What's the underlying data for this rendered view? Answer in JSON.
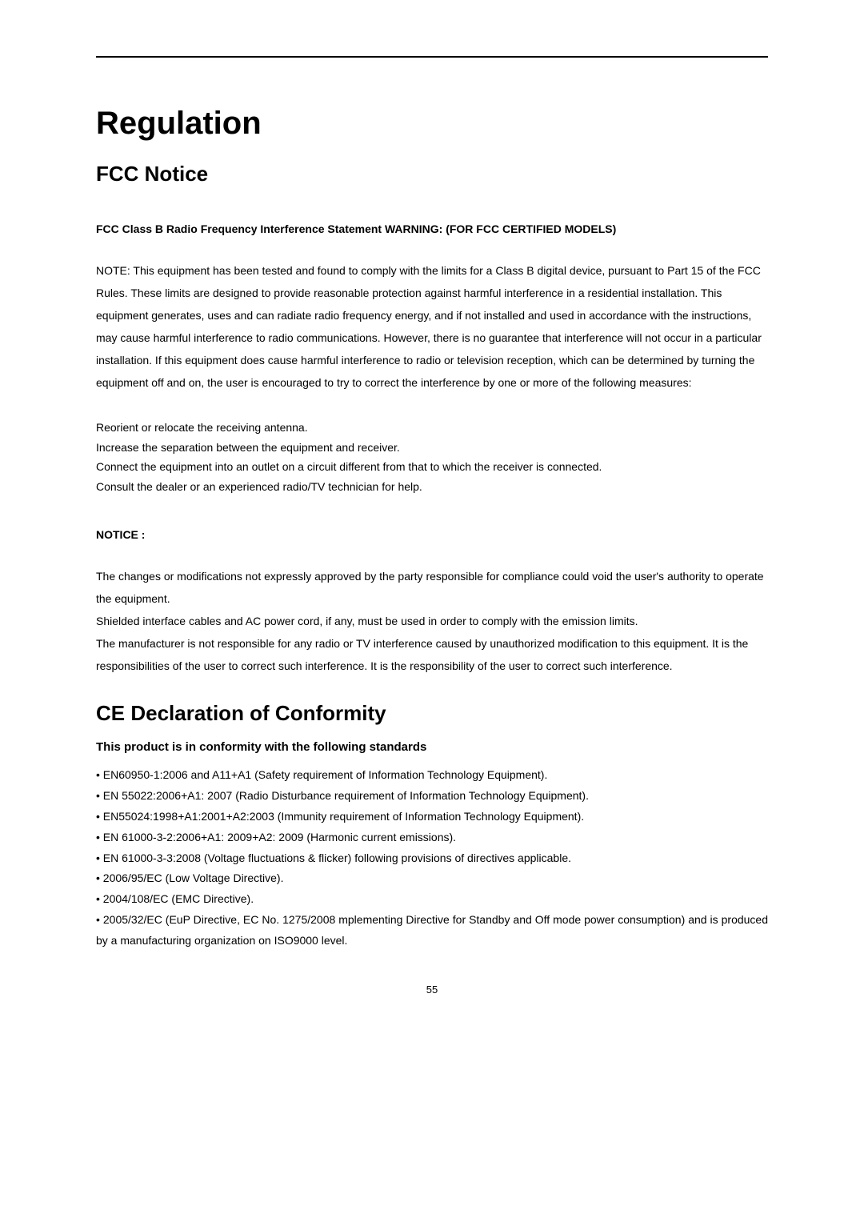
{
  "title": "Regulation",
  "fcc": {
    "heading": "FCC Notice",
    "subheading": "FCC Class B Radio Frequency Interference Statement WARNING: (FOR FCC CERTIFIED MODELS)",
    "paragraph1": "NOTE: This equipment has been tested and found to comply with the limits for a Class B digital device, pursuant to Part 15 of the FCC Rules. These limits are designed to provide reasonable protection against harmful interference in a residential installation. This equipment generates, uses and can radiate radio frequency energy, and if not installed and used in accordance with the instructions, may cause harmful interference to radio communications. However, there is no guarantee that interference will not occur in a particular installation. If this equipment does cause harmful interference to radio or television reception, which can be determined by turning the equipment off and on, the user is encouraged to try to correct the interference by one or more of the following measures:",
    "measure1": "Reorient or relocate the receiving antenna.",
    "measure2": "Increase the separation between the equipment and receiver.",
    "measure3": "Connect the equipment into an outlet on a circuit different from that to which the receiver is connected.",
    "measure4": "Consult the dealer or an experienced radio/TV technician for help.",
    "noticeLabel": "NOTICE :",
    "noticeText": "The changes or modifications not expressly approved by the party responsible for compliance could void the user's authority to operate the equipment.\nShielded interface cables and AC power cord, if any, must be used in order to comply with the emission limits.\nThe manufacturer is not responsible for any radio or TV interference caused by unauthorized modification to this equipment. It is the responsibilities of the user to correct such interference. It is the responsibility of the user to correct such interference."
  },
  "ce": {
    "heading": "CE Declaration of Conformity",
    "subheading": "This product is in conformity with the following standards",
    "item1": "• EN60950-1:2006 and A11+A1 (Safety requirement of Information Technology Equipment).",
    "item2": "• EN 55022:2006+A1: 2007 (Radio Disturbance requirement of Information Technology Equipment).",
    "item3": "• EN55024:1998+A1:2001+A2:2003 (Immunity requirement of Information Technology Equipment).",
    "item4": "• EN 61000-3-2:2006+A1: 2009+A2: 2009 (Harmonic current emissions).",
    "item5": "• EN 61000-3-3:2008 (Voltage fluctuations & flicker) following provisions of directives applicable.",
    "item6": "• 2006/95/EC (Low Voltage Directive).",
    "item7": "• 2004/108/EC (EMC Directive).",
    "item8": "• 2005/32/EC (EuP Directive, EC No. 1275/2008 mplementing Directive for Standby and Off mode power consumption) and is produced by a manufacturing organization on ISO9000 level."
  },
  "pageNumber": "55"
}
